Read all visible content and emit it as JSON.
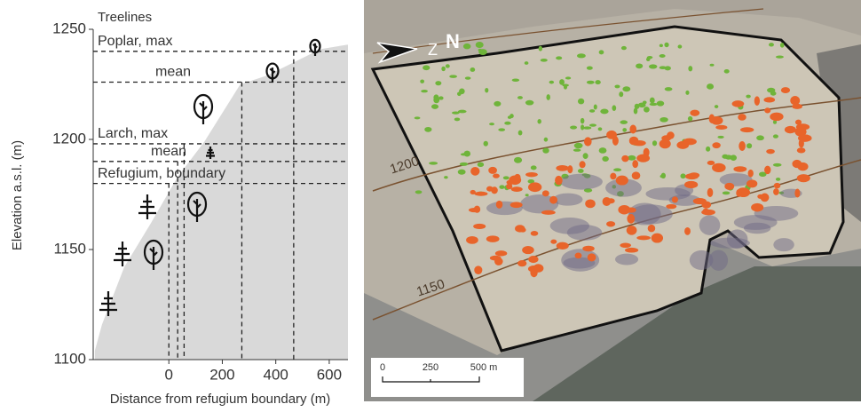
{
  "chart_data": {
    "type": "area",
    "x_label": "Distance from refugium boundary (m)",
    "y_label": "Elevation a.s.l. (m)",
    "heading": "Treelines",
    "color": "#d9d9d9",
    "x": [
      -277,
      -250,
      -167,
      -67,
      33,
      133,
      267,
      367,
      467,
      567,
      667
    ],
    "values": [
      1104,
      1116,
      1142,
      1162,
      1183,
      1199,
      1225,
      1229,
      1235,
      1241,
      1243
    ],
    "xlim": [
      -283,
      670
    ],
    "ylim": [
      1100,
      1250
    ],
    "xticks": [
      0,
      200,
      400,
      600
    ],
    "yticks": [
      1100,
      1150,
      1200,
      1250
    ],
    "treelines": [
      {
        "label": "Poplar, max",
        "elevation": 1240,
        "distance": 467
      },
      {
        "label": "mean",
        "elevation": 1226,
        "distance": 273
      },
      {
        "label": "Larch, max",
        "elevation": 1198,
        "distance": 57
      },
      {
        "label": "mean",
        "elevation": 1190,
        "distance": 33
      },
      {
        "label": "Refugium, boundary",
        "elevation": 1180,
        "distance": 0
      }
    ]
  },
  "image": {
    "north_arrow": "Z",
    "north_label": "N",
    "contours": [
      "1200",
      "1150"
    ],
    "scale_bar": [
      "0",
      "250",
      "500 m"
    ]
  }
}
